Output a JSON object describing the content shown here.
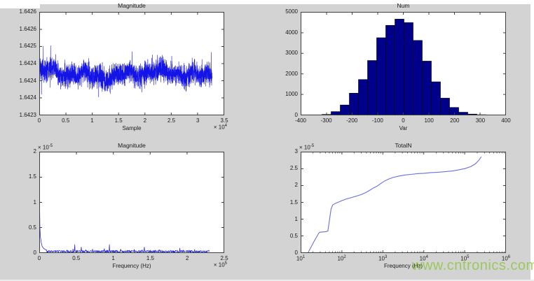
{
  "figure": {
    "background": "#d3d3d3",
    "watermark": {
      "text": "www.cntronics.com",
      "color": "#8dc63f"
    }
  },
  "chart_data": [
    {
      "type": "line",
      "title": "Magnitude",
      "xlabel": "Sample",
      "x_exponent_label": "x 10^4",
      "xlim": [
        0,
        3.5
      ],
      "xticks": [
        "0",
        "0.5",
        "1",
        "1.5",
        "2",
        "2.5",
        "3",
        "3.5"
      ],
      "ylim": [
        1.6423,
        1.6426
      ],
      "yticks": [
        "1.6423",
        "1.6424",
        "1.6424",
        "1.6424",
        "1.6425",
        "1.6426",
        "1.6426"
      ],
      "grid": false,
      "line_color": "#1414e6",
      "signal": {
        "kind": "noise",
        "x_end": 3.27,
        "points": 2600,
        "mean": 1.64242,
        "noise_amp": 5e-05,
        "wander_amp": 1.3e-05,
        "spike_prob": 0.025,
        "spike_gain": 1.8,
        "clamp": [
          1.64232,
          1.64253
        ],
        "seed": 7
      }
    },
    {
      "type": "bar",
      "title": "Num",
      "xlabel": "Var",
      "xlim": [
        -400,
        400
      ],
      "xticks": [
        "-400",
        "-300",
        "-200",
        "-100",
        "0",
        "100",
        "200",
        "300",
        "400"
      ],
      "ylim": [
        0,
        5000
      ],
      "yticks": [
        "0",
        "1000",
        "2000",
        "3000",
        "4000",
        "5000"
      ],
      "grid": false,
      "bar_color": "#00008b",
      "bar_edge": "#000000",
      "bin_width": 35.5,
      "bin_centers": [
        -370,
        -334.5,
        -299,
        -263.5,
        -228,
        -192.5,
        -157,
        -121.5,
        -86,
        -50.5,
        -15,
        20.5,
        56,
        91.5,
        127,
        162.5,
        198,
        233.5,
        269,
        304.5,
        340
      ],
      "values": [
        25,
        25,
        45,
        180,
        500,
        1070,
        1730,
        2650,
        3750,
        4350,
        4650,
        4480,
        3620,
        2620,
        1620,
        830,
        380,
        150,
        60,
        30,
        20
      ]
    },
    {
      "type": "line",
      "title": "Magnitude",
      "xlabel": "Frequency (Hz)",
      "x_exponent_label": "x 10^5",
      "y_exponent_label": "x 10^-5",
      "xlim": [
        0,
        2.5
      ],
      "xticks": [
        "0",
        "0.5",
        "1",
        "1.5",
        "2",
        "2.5"
      ],
      "ylim": [
        0,
        2
      ],
      "yticks": [
        "0",
        "0.5",
        "1",
        "1.5",
        "2"
      ],
      "grid": false,
      "line_color": "#1414e6",
      "signal": {
        "kind": "spectrum",
        "x_end": 2.3,
        "floor": 0.04,
        "base": 0.012,
        "seed": 3,
        "dc_decay": [
          [
            0,
            2.0
          ],
          [
            0.004,
            1.1
          ],
          [
            0.009,
            0.5
          ],
          [
            0.015,
            0.33
          ],
          [
            0.025,
            0.22
          ],
          [
            0.04,
            0.13
          ],
          [
            0.06,
            0.09
          ],
          [
            0.09,
            0.06
          ]
        ],
        "spikes": [
          [
            0.48,
            0.17
          ],
          [
            0.57,
            0.12
          ],
          [
            0.72,
            0.08
          ],
          [
            0.88,
            0.09
          ],
          [
            0.95,
            0.17
          ],
          [
            1.1,
            0.08
          ],
          [
            1.42,
            0.12
          ],
          [
            1.62,
            0.07
          ],
          [
            1.9,
            0.1
          ],
          [
            2.1,
            0.07
          ]
        ]
      }
    },
    {
      "type": "line",
      "title": "TotalN",
      "xlabel": "Frequency (Hz)",
      "y_exponent_label": "x 10^-5",
      "xscale": "log",
      "xlim": [
        10,
        1000000
      ],
      "xticks": [
        "10^1",
        "10^2",
        "10^3",
        "10^4",
        "10^5",
        "10^6"
      ],
      "ylim": [
        0,
        3
      ],
      "yticks": [
        "0",
        "0.5",
        "1",
        "1.5",
        "2",
        "2.5",
        "3"
      ],
      "grid": false,
      "line_color": "#6a6fe0",
      "points": [
        [
          15,
          0
        ],
        [
          18,
          0.18
        ],
        [
          22,
          0.38
        ],
        [
          28,
          0.6
        ],
        [
          30,
          0.62
        ],
        [
          40,
          0.63
        ],
        [
          46,
          0.65
        ],
        [
          50,
          0.95
        ],
        [
          55,
          1.3
        ],
        [
          60,
          1.42
        ],
        [
          70,
          1.47
        ],
        [
          85,
          1.51
        ],
        [
          100,
          1.55
        ],
        [
          130,
          1.6
        ],
        [
          170,
          1.64
        ],
        [
          220,
          1.68
        ],
        [
          300,
          1.73
        ],
        [
          400,
          1.8
        ],
        [
          500,
          1.87
        ],
        [
          600,
          1.93
        ],
        [
          750,
          1.99
        ],
        [
          900,
          2.06
        ],
        [
          1100,
          2.13
        ],
        [
          1400,
          2.19
        ],
        [
          1800,
          2.24
        ],
        [
          2500,
          2.28
        ],
        [
          3500,
          2.31
        ],
        [
          5000,
          2.33
        ],
        [
          7000,
          2.35
        ],
        [
          10000,
          2.36
        ],
        [
          15000,
          2.38
        ],
        [
          22000,
          2.39
        ],
        [
          33000,
          2.41
        ],
        [
          50000,
          2.43
        ],
        [
          70000,
          2.46
        ],
        [
          100000,
          2.5
        ],
        [
          140000,
          2.56
        ],
        [
          180000,
          2.64
        ],
        [
          220000,
          2.75
        ],
        [
          250000,
          2.85
        ]
      ]
    }
  ]
}
